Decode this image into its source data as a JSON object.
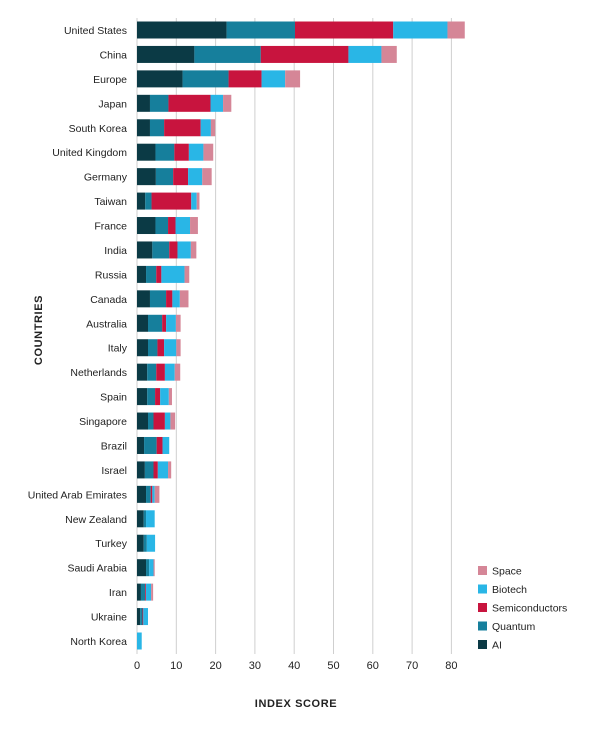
{
  "chart_data": {
    "type": "bar",
    "orientation": "horizontal",
    "stacked": true,
    "xlabel": "INDEX SCORE",
    "ylabel": "COUNTRIES",
    "xlim": [
      0,
      85
    ],
    "xticks": [
      0,
      10,
      20,
      30,
      40,
      50,
      60,
      70,
      80
    ],
    "grid": true,
    "legend_position": "bottom-right",
    "categories": [
      "United States",
      "China",
      "Europe",
      "Japan",
      "South Korea",
      "United Kingdom",
      "Germany",
      "Taiwan",
      "France",
      "India",
      "Russia",
      "Canada",
      "Australia",
      "Italy",
      "Netherlands",
      "Spain",
      "Singapore",
      "Brazil",
      "Israel",
      "United Arab Emirates",
      "New Zealand",
      "Turkey",
      "Saudi Arabia",
      "Iran",
      "Ukraine",
      "North Korea"
    ],
    "series": [
      {
        "name": "AI",
        "color": "#0b3a45",
        "values": [
          22.8,
          14.6,
          11.6,
          3.3,
          3.3,
          4.7,
          4.8,
          2.1,
          4.7,
          3.9,
          2.3,
          3.3,
          2.8,
          2.8,
          2.6,
          2.6,
          2.8,
          1.8,
          2.0,
          2.3,
          1.7,
          1.7,
          2.3,
          1.0,
          0.8,
          0.0
        ]
      },
      {
        "name": "Quantum",
        "color": "#167f9c",
        "values": [
          17.4,
          16.9,
          11.7,
          4.7,
          3.6,
          4.8,
          4.4,
          1.6,
          3.2,
          4.3,
          2.6,
          4.1,
          3.6,
          2.4,
          2.3,
          2.0,
          1.4,
          3.2,
          2.2,
          1.2,
          0.6,
          0.8,
          0.8,
          1.1,
          0.6,
          0.0
        ]
      },
      {
        "name": "Semiconductors",
        "color": "#c8143e",
        "values": [
          25.0,
          22.3,
          8.4,
          10.7,
          9.3,
          3.7,
          3.8,
          10.1,
          1.9,
          2.1,
          1.3,
          1.6,
          1.0,
          1.7,
          2.2,
          1.3,
          2.9,
          1.5,
          1.1,
          0.4,
          0.0,
          0.0,
          0.0,
          0.2,
          0.2,
          0.0
        ]
      },
      {
        "name": "Biotech",
        "color": "#29b6e6",
        "values": [
          13.8,
          8.4,
          6.0,
          3.2,
          2.6,
          3.7,
          3.6,
          1.4,
          3.7,
          3.4,
          5.9,
          1.9,
          2.5,
          3.1,
          2.5,
          2.2,
          1.4,
          1.7,
          2.6,
          0.6,
          2.2,
          2.1,
          1.1,
          1.3,
          1.2,
          1.2
        ]
      },
      {
        "name": "Space",
        "color": "#d58697",
        "values": [
          4.4,
          3.9,
          3.8,
          2.1,
          1.1,
          2.5,
          2.4,
          0.7,
          2.0,
          1.4,
          1.2,
          2.2,
          1.2,
          1.1,
          1.4,
          0.8,
          1.2,
          0.0,
          0.8,
          1.2,
          0.0,
          0.0,
          0.3,
          0.5,
          0.0,
          0.0
        ]
      }
    ]
  }
}
